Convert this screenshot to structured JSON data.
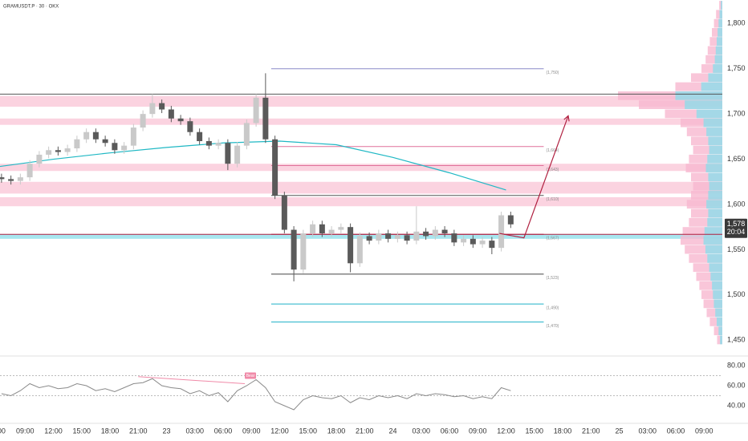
{
  "chart_data": [
    {
      "type": "candlestick",
      "title": "GRAMUSDT.P · 30 · OKX",
      "x": [
        0.5,
        1.5,
        2.5,
        3.5,
        4.5,
        5.5,
        6.5,
        7.5,
        8.5,
        9.5,
        10.5,
        11.5,
        12.5,
        13.5,
        14.5,
        15.5,
        16.5,
        17.5,
        18.5,
        19.5,
        20.5,
        21.5,
        22.5,
        23.5,
        24.5,
        25.5,
        26.5,
        27.5,
        28.5,
        29.5,
        30.5,
        31.5,
        32.5,
        33.5,
        34.5,
        35.5,
        36.5,
        37.5,
        38.5,
        39.5,
        40.5,
        41.5,
        42.5,
        43.5,
        44.5,
        45.5,
        46.5,
        47.5,
        48.5,
        49.5,
        50.5,
        51.5,
        52.5,
        53.5,
        54.5
      ],
      "open": [
        1630,
        1628,
        1626,
        1630,
        1645,
        1655,
        1660,
        1658,
        1662,
        1672,
        1680,
        1672,
        1668,
        1660,
        1665,
        1685,
        1700,
        1712,
        1705,
        1695,
        1692,
        1680,
        1670,
        1665,
        1668,
        1645,
        1665,
        1690,
        1718,
        1672,
        1610,
        1572,
        1528,
        1568,
        1578,
        1568,
        1572,
        1575,
        1535,
        1565,
        1560,
        1568,
        1562,
        1566,
        1560,
        1570,
        1565,
        1572,
        1568,
        1558,
        1562,
        1556,
        1560,
        1552,
        1588
      ],
      "high": [
        1634,
        1632,
        1634,
        1649,
        1659,
        1664,
        1664,
        1666,
        1676,
        1684,
        1684,
        1676,
        1672,
        1669,
        1689,
        1704,
        1722,
        1716,
        1709,
        1699,
        1696,
        1684,
        1674,
        1672,
        1672,
        1669,
        1694,
        1722,
        1745,
        1676,
        1614,
        1576,
        1572,
        1582,
        1582,
        1576,
        1579,
        1579,
        1569,
        1569,
        1572,
        1572,
        1570,
        1570,
        1598,
        1574,
        1576,
        1576,
        1572,
        1566,
        1566,
        1564,
        1564,
        1592,
        1592
      ],
      "low": [
        1624,
        1622,
        1622,
        1626,
        1641,
        1651,
        1654,
        1654,
        1658,
        1668,
        1668,
        1664,
        1656,
        1656,
        1661,
        1681,
        1696,
        1701,
        1691,
        1688,
        1676,
        1666,
        1661,
        1661,
        1638,
        1641,
        1661,
        1686,
        1668,
        1606,
        1568,
        1515,
        1524,
        1564,
        1564,
        1564,
        1568,
        1525,
        1531,
        1556,
        1556,
        1558,
        1558,
        1556,
        1556,
        1561,
        1561,
        1564,
        1554,
        1554,
        1552,
        1552,
        1545,
        1548,
        1574
      ],
      "close": [
        1628,
        1626,
        1630,
        1645,
        1655,
        1660,
        1658,
        1662,
        1672,
        1680,
        1672,
        1668,
        1660,
        1665,
        1685,
        1700,
        1712,
        1705,
        1695,
        1692,
        1680,
        1670,
        1665,
        1668,
        1645,
        1665,
        1690,
        1718,
        1672,
        1610,
        1572,
        1528,
        1568,
        1578,
        1568,
        1572,
        1575,
        1535,
        1565,
        1560,
        1568,
        1562,
        1566,
        1560,
        1570,
        1565,
        1572,
        1568,
        1558,
        1562,
        1556,
        1560,
        1552,
        1588,
        1578
      ],
      "up_color": "#c9c9c9",
      "down_color": "#5a5a5a",
      "xlim": [
        0.34,
        76.94
      ],
      "xticks": [
        {
          "value": 0.5,
          "label": "00"
        },
        {
          "value": 3,
          "label": "09:00"
        },
        {
          "value": 6,
          "label": "12:00"
        },
        {
          "value": 9,
          "label": "15:00"
        },
        {
          "value": 12,
          "label": "18:00"
        },
        {
          "value": 15,
          "label": "21:00"
        },
        {
          "value": 18,
          "label": "23"
        },
        {
          "value": 21,
          "label": "03:00"
        },
        {
          "value": 24,
          "label": "06:00"
        },
        {
          "value": 27,
          "label": "09:00"
        },
        {
          "value": 30,
          "label": "12:00"
        },
        {
          "value": 33,
          "label": "15:00"
        },
        {
          "value": 36,
          "label": "18:00"
        },
        {
          "value": 39,
          "label": "21:00"
        },
        {
          "value": 42,
          "label": "24"
        },
        {
          "value": 45,
          "label": "03:00"
        },
        {
          "value": 48,
          "label": "06:00"
        },
        {
          "value": 51,
          "label": "09:00"
        },
        {
          "value": 54,
          "label": "12:00"
        },
        {
          "value": 57,
          "label": "15:00"
        },
        {
          "value": 60,
          "label": "18:00"
        },
        {
          "value": 63,
          "label": "21:00"
        },
        {
          "value": 66,
          "label": "25"
        },
        {
          "value": 69,
          "label": "03:00"
        },
        {
          "value": 72,
          "label": "06:00"
        },
        {
          "value": 75,
          "label": "09:00"
        }
      ],
      "ylim": [
        1436,
        1826
      ],
      "yticks": [
        {
          "value": 1800,
          "label": "1,800"
        },
        {
          "value": 1750,
          "label": "1,750"
        },
        {
          "value": 1700,
          "label": "1,700"
        },
        {
          "value": 1650,
          "label": "1,650"
        },
        {
          "value": 1600,
          "label": "1,600"
        },
        {
          "value": 1550,
          "label": "1,550"
        },
        {
          "value": 1500,
          "label": "1,500"
        },
        {
          "value": 1450,
          "label": "1,450"
        }
      ],
      "zones": [
        {
          "range": [
            1708,
            1720
          ],
          "color": "#fbd3e0"
        },
        {
          "range": [
            1688,
            1695
          ],
          "color": "#fbd3e0"
        },
        {
          "range": [
            1637,
            1645
          ],
          "color": "#fbd3e0"
        },
        {
          "range": [
            1612,
            1625
          ],
          "color": "#fbd3e0"
        },
        {
          "range": [
            1598,
            1608
          ],
          "color": "#fbd3e0"
        },
        {
          "range": [
            1562,
            1567
          ],
          "color": "#a8e6ef"
        }
      ],
      "hlines": [
        {
          "value": 1722,
          "color": "#555555"
        },
        {
          "value": 1567,
          "color": "#b02040"
        }
      ],
      "overlay": {
        "x": [
          0.34,
          6,
          12,
          18,
          24,
          30,
          36,
          42,
          48,
          54
        ],
        "values": [
          1642,
          1650,
          1657,
          1663,
          1668,
          1670,
          1666,
          1652,
          1635,
          1616
        ],
        "color": "#1fb8c4"
      },
      "levels_x": [
        29.1,
        58
      ],
      "levels": [
        {
          "value": 1750,
          "label": "(1,750)",
          "color": "#8a8ac8"
        },
        {
          "value": 1664,
          "label": "(1,664)",
          "color": "#e0709a"
        },
        {
          "value": 1643,
          "label": "(1,643)",
          "color": "#e0709a"
        },
        {
          "value": 1610,
          "label": "(1,610)",
          "color": "#555555"
        },
        {
          "value": 1567,
          "label": "(1,567)",
          "color": "#b02040"
        },
        {
          "value": 1523,
          "label": "(1,523)",
          "color": "#444444"
        },
        {
          "value": 1490,
          "label": "(1,490)",
          "color": "#1fb0c8"
        },
        {
          "value": 1470,
          "label": "(1,470)",
          "color": "#1fb0c8"
        }
      ],
      "projection": {
        "x": [
          53.3,
          55.9,
          60.6
        ],
        "values": [
          1568,
          1563,
          1698
        ],
        "color": "#b02040"
      },
      "volume_profile": {
        "levels": [
          1450,
          1460,
          1470,
          1480,
          1490,
          1500,
          1510,
          1520,
          1530,
          1540,
          1550,
          1560,
          1570,
          1580,
          1590,
          1600,
          1610,
          1620,
          1630,
          1640,
          1650,
          1660,
          1670,
          1680,
          1690,
          1700,
          1710,
          1720,
          1730,
          1740,
          1750,
          1760,
          1770,
          1780,
          1790,
          1800,
          1810,
          1820
        ],
        "values": [
          5,
          8,
          12,
          15,
          18,
          20,
          22,
          25,
          28,
          32,
          36,
          40,
          38,
          32,
          30,
          34,
          30,
          28,
          30,
          35,
          32,
          28,
          30,
          34,
          40,
          55,
          80,
          100,
          45,
          30,
          20,
          16,
          14,
          12,
          10,
          8,
          6,
          3
        ],
        "color": "#f7b8cf",
        "color2": "#8fdcea"
      },
      "last_price": {
        "value": 1578,
        "label": "1,578"
      },
      "countdown": "20:04"
    },
    {
      "type": "line",
      "x": [
        0.5,
        1.5,
        2.5,
        3.5,
        4.5,
        5.5,
        6.5,
        7.5,
        8.5,
        9.5,
        10.5,
        11.5,
        12.5,
        13.5,
        14.5,
        15.5,
        16.5,
        17.5,
        18.5,
        19.5,
        20.5,
        21.5,
        22.5,
        23.5,
        24.5,
        25.5,
        26.5,
        27.5,
        28.5,
        29.5,
        30.5,
        31.5,
        32.5,
        33.5,
        34.5,
        35.5,
        36.5,
        37.5,
        38.5,
        39.5,
        40.5,
        41.5,
        42.5,
        43.5,
        44.5,
        45.5,
        46.5,
        47.5,
        48.5,
        49.5,
        50.5,
        51.5,
        52.5,
        53.5,
        54.5
      ],
      "values": [
        52,
        50,
        55,
        62,
        58,
        60,
        57,
        58,
        62,
        60,
        55,
        57,
        54,
        58,
        62,
        63,
        67,
        60,
        58,
        57,
        52,
        55,
        50,
        53,
        44,
        55,
        60,
        66,
        58,
        44,
        40,
        36,
        46,
        50,
        48,
        47,
        50,
        43,
        48,
        46,
        50,
        48,
        50,
        47,
        52,
        50,
        52,
        51,
        49,
        50,
        47,
        49,
        47,
        58,
        55
      ],
      "color": "#8a8a8a",
      "xlim": [
        0.34,
        76.94
      ],
      "ylim": [
        28.8,
        86.4
      ],
      "yticks": [
        {
          "value": 80,
          "label": "80.00"
        },
        {
          "value": 60,
          "label": "60.00"
        },
        {
          "value": 40,
          "label": "40.00"
        }
      ],
      "levels": [
        70,
        50
      ],
      "divergence": {
        "x": [
          15,
          26.3
        ],
        "values": [
          69,
          62
        ],
        "color": "#f08aa8",
        "label": "Bear"
      }
    }
  ]
}
